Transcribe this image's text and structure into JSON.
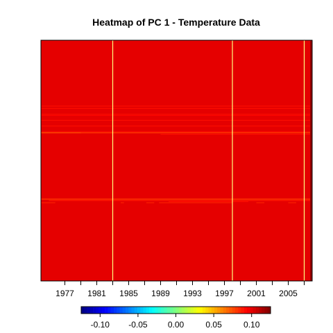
{
  "chart_data": {
    "type": "heatmap",
    "title": "Heatmap of PC 1  - Temperature Data",
    "xlabel": "",
    "ylabel": "",
    "x_range": [
      1974,
      2008
    ],
    "x_ticks": [
      1977,
      1979,
      1981,
      1983,
      1985,
      1987,
      1989,
      1991,
      1993,
      1995,
      1997,
      1999,
      2001,
      2003,
      2005,
      2007
    ],
    "x_tick_labels": [
      "1977",
      "",
      "1981",
      "",
      "1985",
      "",
      "1989",
      "",
      "1993",
      "",
      "1997",
      "",
      "2001",
      "",
      "2005",
      ""
    ],
    "vertical_lines_x": [
      1983.0,
      1998.0,
      2007.0
    ],
    "vertical_line_color": "#ffff80",
    "background_value": 0.1,
    "right_edge_value": 0.12,
    "bands": [
      {
        "y": [
          0.3235,
          0.3265
        ],
        "x": [
          1974,
          1975.8
        ],
        "value": 0.085
      },
      {
        "y": [
          0.3235,
          0.3265
        ],
        "x": [
          1984.0,
          1984.4
        ],
        "value": 0.085
      },
      {
        "y": [
          0.3235,
          0.3265
        ],
        "x": [
          1987.2,
          1988.2
        ],
        "value": 0.085
      },
      {
        "y": [
          0.3235,
          0.3265
        ],
        "x": [
          1988.8,
          1998.0
        ],
        "value": 0.085
      },
      {
        "y": [
          0.3235,
          0.3265
        ],
        "x": [
          2001.0,
          2002.0
        ],
        "value": 0.085
      },
      {
        "y": [
          0.3235,
          0.3265
        ],
        "x": [
          2005.0,
          2006.0
        ],
        "value": 0.085
      },
      {
        "y": [
          0.328,
          0.331
        ],
        "x": [
          1990.0,
          2000.0
        ],
        "value": 0.09
      },
      {
        "y": [
          0.3325,
          0.3365
        ],
        "x": [
          1975.0,
          2008.0
        ],
        "value": 0.088
      },
      {
        "y": [
          0.338,
          0.342
        ],
        "x": [
          1974.0,
          2008.0
        ],
        "value": 0.08
      },
      {
        "y": [
          0.6135,
          0.6175
        ],
        "x": [
          1974.0,
          1979.0
        ],
        "value": 0.075
      },
      {
        "y": [
          0.6135,
          0.6175
        ],
        "x": [
          1979.0,
          2008.0
        ],
        "value": 0.08
      },
      {
        "y": [
          0.608,
          0.611
        ],
        "x": [
          1989.0,
          2008.0
        ],
        "value": 0.09
      },
      {
        "y": [
          0.619,
          0.6215
        ],
        "x": [
          1974.0,
          2008.0
        ],
        "value": 0.09
      },
      {
        "y": [
          0.642,
          0.645
        ],
        "x": [
          1974.0,
          2008.0
        ],
        "value": 0.09
      },
      {
        "y": [
          0.666,
          0.669
        ],
        "x": [
          1974.0,
          2008.0
        ],
        "value": 0.09
      },
      {
        "y": [
          0.686,
          0.689
        ],
        "x": [
          1974.0,
          2008.0
        ],
        "value": 0.092
      },
      {
        "y": [
          0.692,
          0.694
        ],
        "x": [
          1974.0,
          2008.0
        ],
        "value": 0.09
      },
      {
        "y": [
          0.715,
          0.718
        ],
        "x": [
          1974.0,
          2008.0
        ],
        "value": 0.09
      },
      {
        "y": [
          0.725,
          0.728
        ],
        "x": [
          1974.0,
          2008.0
        ],
        "value": 0.09
      }
    ],
    "legend": {
      "position": "bottom",
      "range": [
        -0.125,
        0.125
      ],
      "ticks": [
        -0.1,
        -0.05,
        0.0,
        0.05,
        0.1
      ],
      "tick_labels": [
        "-0.10",
        "-0.05",
        "0.00",
        "0.05",
        "0.10"
      ]
    },
    "colormap": [
      "#00007f",
      "#0000ff",
      "#007fff",
      "#00ffff",
      "#7fff7f",
      "#ffff00",
      "#ff7f00",
      "#ff0000",
      "#7f0000"
    ],
    "grid": false
  }
}
